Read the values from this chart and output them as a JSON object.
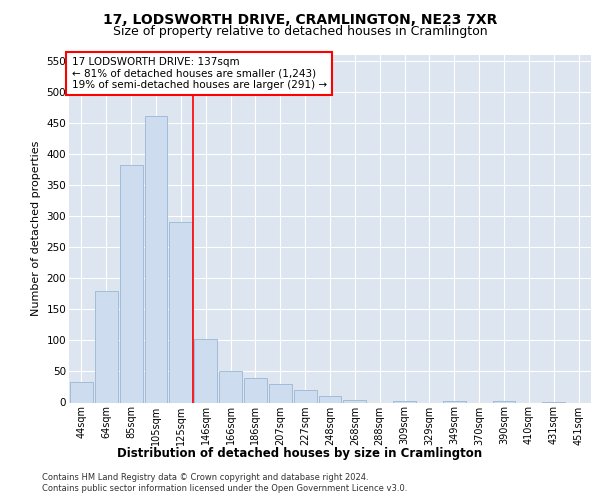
{
  "title": "17, LODSWORTH DRIVE, CRAMLINGTON, NE23 7XR",
  "subtitle": "Size of property relative to detached houses in Cramlington",
  "xlabel": "Distribution of detached houses by size in Cramlington",
  "ylabel": "Number of detached properties",
  "categories": [
    "44sqm",
    "64sqm",
    "85sqm",
    "105sqm",
    "125sqm",
    "146sqm",
    "166sqm",
    "186sqm",
    "207sqm",
    "227sqm",
    "248sqm",
    "268sqm",
    "288sqm",
    "309sqm",
    "329sqm",
    "349sqm",
    "370sqm",
    "390sqm",
    "410sqm",
    "431sqm",
    "451sqm"
  ],
  "values": [
    33,
    180,
    383,
    462,
    291,
    102,
    50,
    40,
    30,
    20,
    10,
    4,
    0,
    3,
    0,
    2,
    0,
    2,
    0,
    1,
    0
  ],
  "bar_color": "#cddcee",
  "bar_edgecolor": "#9ab5d3",
  "annotation_line1": "17 LODSWORTH DRIVE: 137sqm",
  "annotation_line2": "← 81% of detached houses are smaller (1,243)",
  "annotation_line3": "19% of semi-detached houses are larger (291) →",
  "ylim": [
    0,
    560
  ],
  "yticks": [
    0,
    50,
    100,
    150,
    200,
    250,
    300,
    350,
    400,
    450,
    500,
    550
  ],
  "footnote1": "Contains HM Land Registry data © Crown copyright and database right 2024.",
  "footnote2": "Contains public sector information licensed under the Open Government Licence v3.0.",
  "plot_bg_color": "#dde6f0",
  "title_fontsize": 10,
  "subtitle_fontsize": 9
}
